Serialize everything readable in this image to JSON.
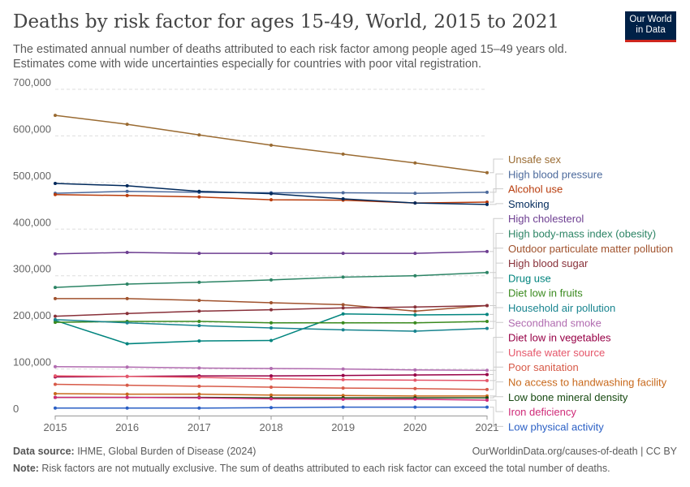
{
  "header": {
    "title": "Deaths by risk factor for ages 15-49, World, 2015 to 2021",
    "subtitle": "The estimated annual number of deaths attributed to each risk factor among people aged 15–49 years old. Estimates come with wide uncertainties especially for countries with poor vital registration.",
    "logo": "Our World in Data"
  },
  "footer": {
    "source_label": "Data source:",
    "source": " IHME, Global Burden of Disease (2024)",
    "url": "OurWorldinData.org/causes-of-death | CC BY",
    "note_label": "Note:",
    "note": " Risk factors are not mutually exclusive. The sum of deaths attributed to each risk factor can exceed the total number of deaths."
  },
  "chart_data": {
    "type": "line",
    "title": "Deaths by risk factor for ages 15-49, World, 2015 to 2021",
    "xlabel": "",
    "ylabel": "",
    "x": [
      2015,
      2016,
      2017,
      2018,
      2019,
      2020,
      2021
    ],
    "ylim": [
      0,
      700000
    ],
    "yticks": [
      0,
      100000,
      200000,
      300000,
      400000,
      500000,
      600000,
      700000
    ],
    "ytick_labels": [
      "0",
      "100,000",
      "200,000",
      "300,000",
      "400,000",
      "500,000",
      "600,000",
      "700,000"
    ],
    "grid": "horizontal dashed",
    "legend": "right (line-end labels)",
    "series": [
      {
        "name": "Unsafe sex",
        "color": "#9a6b32",
        "values": [
          644000,
          625000,
          602000,
          580000,
          561000,
          542000,
          521000
        ]
      },
      {
        "name": "High blood pressure",
        "color": "#4c6a9c",
        "values": [
          477000,
          481000,
          479000,
          478000,
          478000,
          477000,
          479000
        ]
      },
      {
        "name": "Alcohol use",
        "color": "#b83c0c",
        "values": [
          474000,
          472000,
          469000,
          463000,
          462000,
          456000,
          458000
        ]
      },
      {
        "name": "Smoking",
        "color": "#00295b",
        "values": [
          498000,
          493000,
          481000,
          476000,
          465000,
          456000,
          453000
        ]
      },
      {
        "name": "High cholesterol",
        "color": "#6d3e91",
        "values": [
          347000,
          350000,
          348000,
          348000,
          348000,
          348000,
          352000
        ]
      },
      {
        "name": "High body-mass index (obesity)",
        "color": "#2c8465",
        "values": [
          275000,
          282000,
          286000,
          291000,
          297000,
          300000,
          307000
        ]
      },
      {
        "name": "Outdoor particulate matter pollution",
        "color": "#a0522d",
        "values": [
          251000,
          251000,
          247000,
          242000,
          238000,
          224000,
          236000
        ]
      },
      {
        "name": "High blood sugar",
        "color": "#883039",
        "values": [
          213000,
          219000,
          224000,
          227000,
          231000,
          233000,
          236000
        ]
      },
      {
        "name": "Drug use",
        "color": "#00847e",
        "values": [
          204000,
          154000,
          160000,
          161000,
          218000,
          216000,
          217000
        ]
      },
      {
        "name": "Diet low in fruits",
        "color": "#3a8a1e",
        "values": [
          200000,
          202000,
          202000,
          199000,
          199000,
          199000,
          202000
        ]
      },
      {
        "name": "Household air pollution",
        "color": "#18848f",
        "values": [
          206000,
          199000,
          193000,
          188000,
          184000,
          181000,
          187000
        ]
      },
      {
        "name": "Secondhand smoke",
        "color": "#b16cb0",
        "values": [
          105000,
          104000,
          102000,
          101000,
          100000,
          98000,
          97000
        ]
      },
      {
        "name": "Diet low in vegetables",
        "color": "#970046",
        "values": [
          83000,
          84000,
          85000,
          85000,
          86000,
          87000,
          88000
        ]
      },
      {
        "name": "Unsafe water source",
        "color": "#e5566a",
        "values": [
          85000,
          84000,
          82000,
          79000,
          77000,
          76000,
          75000
        ]
      },
      {
        "name": "Poor sanitation",
        "color": "#d75a48",
        "values": [
          67000,
          65000,
          63000,
          61000,
          59000,
          58000,
          56000
        ]
      },
      {
        "name": "No access to handwashing facility",
        "color": "#c8691c",
        "values": [
          47000,
          46000,
          46000,
          44000,
          43000,
          42000,
          42000
        ]
      },
      {
        "name": "Low bone mineral density",
        "color": "#184a12",
        "values": [
          39000,
          39000,
          39000,
          38000,
          38000,
          38000,
          38000
        ]
      },
      {
        "name": "Iron deficiency",
        "color": "#cf2a78",
        "values": [
          39000,
          39000,
          38000,
          36000,
          35000,
          35000,
          33000
        ]
      },
      {
        "name": "Low physical activity",
        "color": "#2a5fc5",
        "values": [
          16000,
          16000,
          16000,
          17000,
          18000,
          18000,
          18000
        ]
      }
    ]
  }
}
